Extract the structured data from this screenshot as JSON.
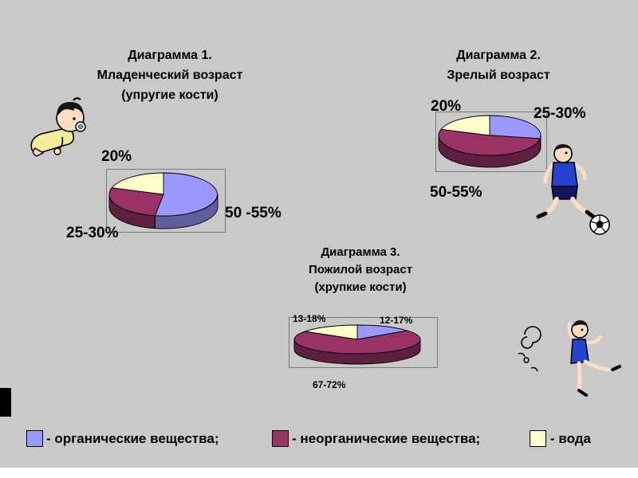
{
  "slide": {
    "background": "#c9c9c9",
    "legend": [
      {
        "label": "- органические вещества;",
        "color": "#9999ff"
      },
      {
        "label": "- неорганические вещества;",
        "color": "#993366"
      },
      {
        "label": "- вода",
        "color": "#ffffcc"
      }
    ],
    "decorations": {
      "baby": "baby-clipart",
      "footballer": "footballer-clipart",
      "dancer": "dancer-clipart"
    }
  },
  "chart_data": [
    {
      "type": "pie",
      "title": "Диаграмма 1.",
      "subtitle": "Младенческий возраст",
      "note": "(упругие кости)",
      "legend_position": "none",
      "slices": [
        {
          "name": "органические вещества",
          "label": "50 -55%",
          "value": 52.5,
          "color": "#9999ff"
        },
        {
          "name": "неорганические вещества",
          "label": "25-30%",
          "value": 27.5,
          "color": "#993366"
        },
        {
          "name": "вода",
          "label": "20%",
          "value": 20,
          "color": "#ffffcc"
        }
      ]
    },
    {
      "type": "pie",
      "title": "Диаграмма 2.",
      "subtitle": "Зрелый возраст",
      "note": "",
      "legend_position": "none",
      "slices": [
        {
          "name": "органические вещества",
          "label": "25-30%",
          "value": 27.5,
          "color": "#9999ff"
        },
        {
          "name": "неорганические вещества",
          "label": "50-55%",
          "value": 52.5,
          "color": "#993366"
        },
        {
          "name": "вода",
          "label": "20%",
          "value": 20,
          "color": "#ffffcc"
        }
      ]
    },
    {
      "type": "pie",
      "title": "Диаграмма 3.",
      "subtitle": "Пожилой возраст",
      "note": "(хрупкие кости)",
      "legend_position": "none",
      "slices": [
        {
          "name": "органические вещества",
          "label": "12-17%",
          "value": 14.5,
          "color": "#9999ff"
        },
        {
          "name": "неорганические вещества",
          "label": "67-72%",
          "value": 69.5,
          "color": "#993366"
        },
        {
          "name": "вода",
          "label": "13-18%",
          "value": 15.5,
          "color": "#ffffcc"
        }
      ]
    }
  ]
}
